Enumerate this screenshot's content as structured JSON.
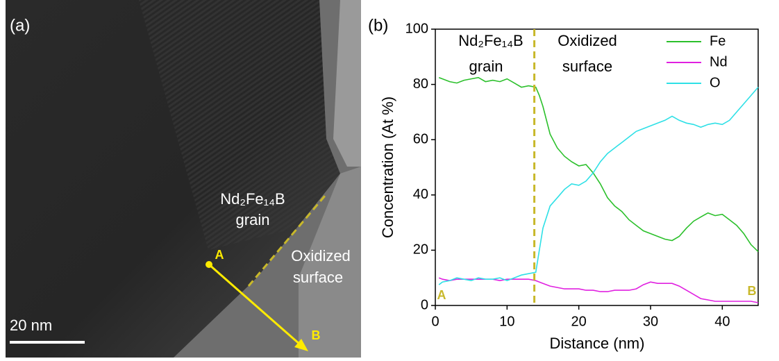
{
  "image_panel": {
    "panel_label": "(a)",
    "phase_label": [
      "Nd₂Fe₁₄B",
      "grain"
    ],
    "surface_label": [
      "Oxidized",
      "surface"
    ],
    "point_a": "A",
    "point_b": "B",
    "scale_bar": "20 nm"
  },
  "chart_data": {
    "type": "line",
    "panel_label": "(b)",
    "x_label": "Distance (nm)",
    "y_label": "Concentration (At %)",
    "xlim": [
      0,
      45
    ],
    "xticks": [
      0,
      10,
      20,
      30,
      40
    ],
    "ylim": [
      0,
      100
    ],
    "yticks": [
      0,
      20,
      40,
      60,
      80,
      100
    ],
    "legend": "upper right",
    "marker_line": {
      "x": 13.8,
      "color": "#c8b82a"
    },
    "annotations": {
      "phase": [
        "Nd₂Fe₁₄B",
        "grain"
      ],
      "surface": [
        "Oxidized",
        "surface"
      ],
      "start": "A",
      "end": "B"
    },
    "x": [
      0.5,
      1,
      2,
      3,
      4,
      5,
      6,
      7,
      8,
      9,
      10,
      11,
      12,
      13,
      14,
      14.5,
      15,
      16,
      17,
      18,
      19,
      20,
      21,
      22,
      23,
      24,
      25,
      26,
      27,
      28,
      29,
      30,
      31,
      32,
      33,
      34,
      35,
      36,
      37,
      38,
      39,
      40,
      41,
      42,
      43,
      44,
      45
    ],
    "series": [
      {
        "name": "Fe",
        "color": "#2bc02b",
        "values": [
          82.5,
          82,
          81,
          80.5,
          81.5,
          82,
          82.5,
          81,
          81.5,
          81,
          82,
          80.5,
          79,
          79.5,
          79,
          76,
          72,
          62,
          57,
          54,
          52,
          50.5,
          51,
          48,
          44,
          39,
          36,
          34,
          31,
          29,
          27,
          26,
          25,
          24,
          23.5,
          25,
          28,
          30.5,
          32,
          33.5,
          32.5,
          33,
          31,
          29,
          26,
          22,
          19.5
        ]
      },
      {
        "name": "Nd",
        "color": "#e020e0",
        "values": [
          10,
          9.5,
          9,
          9.5,
          9.5,
          9.5,
          9.5,
          9.5,
          9.5,
          9,
          9.5,
          9.5,
          9.5,
          9.5,
          9,
          8.5,
          8,
          7,
          6.5,
          6,
          6,
          6,
          5.5,
          5.5,
          5,
          5,
          5.5,
          5.5,
          5.5,
          6,
          7.5,
          8.5,
          8,
          8,
          8,
          7,
          5.5,
          4,
          2.5,
          2,
          1.5,
          1.5,
          1.5,
          1.5,
          1.5,
          1.5,
          1
        ]
      },
      {
        "name": "O",
        "color": "#2ee0e6",
        "values": [
          7.5,
          8.5,
          9,
          10,
          9.5,
          9,
          10,
          9.5,
          9.5,
          10,
          9,
          10,
          11,
          11.5,
          12,
          20,
          28,
          36,
          39,
          42,
          44,
          43.5,
          45,
          48,
          52,
          55,
          57,
          59,
          61,
          63,
          64,
          65,
          66,
          67,
          68.5,
          67,
          66,
          65.5,
          64.5,
          65.5,
          66,
          65.5,
          67,
          70,
          73,
          76,
          79
        ]
      }
    ]
  }
}
